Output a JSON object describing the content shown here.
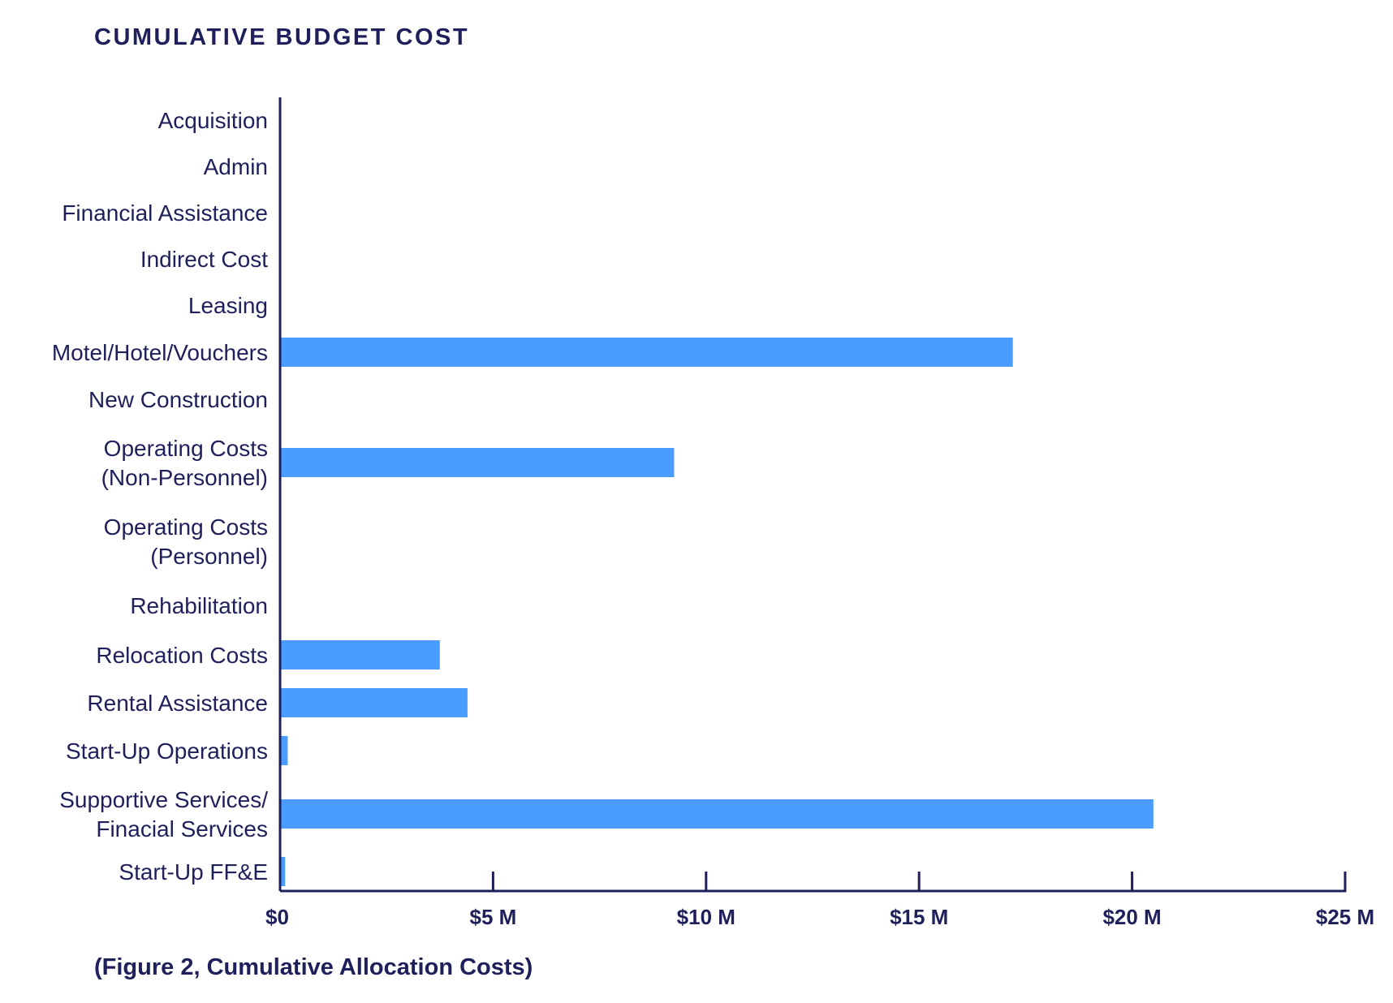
{
  "chart_data": {
    "type": "bar",
    "orientation": "horizontal",
    "title": "CUMULATIVE BUDGET COST",
    "caption": "(Figure 2, Cumulative Allocation Costs)",
    "categories": [
      [
        "Acquisition"
      ],
      [
        "Admin"
      ],
      [
        "Financial Assistance"
      ],
      [
        "Indirect Cost"
      ],
      [
        "Leasing"
      ],
      [
        "Motel/Hotel/Vouchers"
      ],
      [
        "New Construction"
      ],
      [
        "Operating Costs",
        "(Non-Personnel)"
      ],
      [
        "Operating Costs",
        "(Personnel)"
      ],
      [
        "Rehabilitation"
      ],
      [
        "Relocation Costs"
      ],
      [
        "Rental Assistance"
      ],
      [
        "Start-Up Operations"
      ],
      [
        "Supportive Services/",
        "Finacial Services"
      ],
      [
        "Start-Up FF&E"
      ]
    ],
    "values": [
      0,
      0,
      0,
      0,
      0,
      17.2,
      0,
      9.25,
      0,
      0,
      3.75,
      4.4,
      0.18,
      20.5,
      0.12
    ],
    "value_unit": "$M",
    "xlim": [
      0,
      25
    ],
    "xticks": [
      0,
      5,
      10,
      15,
      20,
      25
    ],
    "xtick_labels": [
      "$0",
      "$5 M",
      "$10 M",
      "$15 M",
      "$20 M",
      "$25 M"
    ],
    "grid": false,
    "legend": "none",
    "colors": {
      "bar": "#4a9dff",
      "axis": "#1f1f5c",
      "text": "#1f1f5c"
    }
  }
}
